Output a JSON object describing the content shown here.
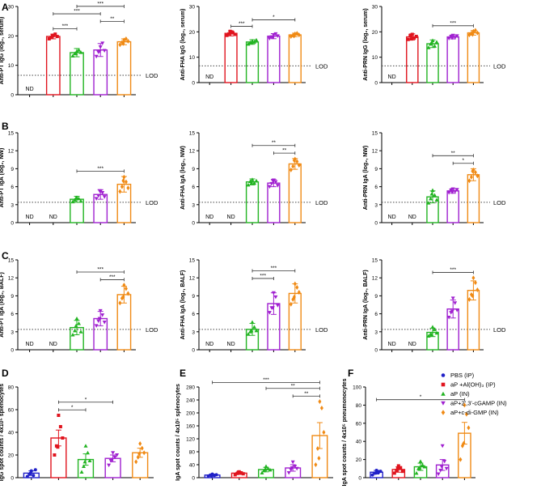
{
  "figure": {
    "panel_letters": [
      "A",
      "B",
      "C",
      "D",
      "E",
      "F"
    ],
    "lod_label": "LOD",
    "nd_label": "ND"
  },
  "legend": {
    "entries": [
      {
        "label": "PBS (IP)",
        "color": "#2020c8",
        "marker": "circle"
      },
      {
        "label": "aP +Al(OH)3 (IP)",
        "color": "#e0141e",
        "marker": "square"
      },
      {
        "label": "aP (IN)",
        "color": "#22b422",
        "marker": "triangle-up"
      },
      {
        "label": "aP+2',3'-cGAMP (IN)",
        "color": "#a020d0",
        "marker": "triangle-down"
      },
      {
        "label": "aP+c-di-GMP (IN)",
        "color": "#f08a14",
        "marker": "diamond"
      }
    ]
  },
  "chart_data": [
    {
      "type": "bar",
      "panel": "A",
      "ylabel": "Anti-PT IgG (log2, serum)",
      "ylim": [
        0,
        30
      ],
      "yticks": [
        0,
        10,
        20,
        30
      ],
      "lod": 6.6,
      "groups": [
        "PBS (IP)",
        "aP +Al(OH)3 (IP)",
        "aP (IN)",
        "aP+2',3'-cGAMP (IN)",
        "aP+c-di-GMP (IN)"
      ],
      "values": [
        null,
        19.8,
        14.3,
        15.2,
        18.0
      ],
      "errors": [
        null,
        0.8,
        1.4,
        2.2,
        1.0
      ],
      "nd": [
        true,
        false,
        false,
        false,
        false
      ],
      "points": [
        [],
        [
          19.0,
          19.5,
          20.2,
          20.6,
          19.8,
          20.0
        ],
        [
          13.2,
          14.0,
          14.8,
          15.2,
          14.4,
          14.0
        ],
        [
          13.0,
          14.5,
          16.2,
          17.5,
          15.0,
          14.8
        ],
        [
          17.0,
          17.8,
          18.6,
          19.0,
          18.2,
          17.4
        ]
      ],
      "brackets": [
        {
          "from": 1,
          "to": 2,
          "label": "***"
        },
        {
          "from": 1,
          "to": 3,
          "label": "***"
        },
        {
          "from": 2,
          "to": 4,
          "label": "***"
        },
        {
          "from": 3,
          "to": 4,
          "label": "**"
        }
      ]
    },
    {
      "type": "bar",
      "panel": "A2",
      "ylabel": "Anti-FHA IgG (log2, serum)",
      "ylim": [
        0,
        30
      ],
      "yticks": [
        0,
        10,
        20,
        30
      ],
      "lod": 6.6,
      "groups": [
        "PBS (IP)",
        "aP +Al(OH)3 (IP)",
        "aP (IN)",
        "aP+2',3'-cGAMP (IN)",
        "aP+c-di-GMP (IN)"
      ],
      "values": [
        null,
        19.4,
        16.0,
        18.3,
        18.8
      ],
      "errors": [
        null,
        1.0,
        0.9,
        1.0,
        0.7
      ],
      "nd": [
        true,
        false,
        false,
        false,
        false
      ],
      "points": [
        [],
        [
          18.6,
          19.2,
          20.0,
          19.6,
          19.0,
          20.2
        ],
        [
          15.2,
          15.8,
          16.4,
          16.0,
          16.8,
          15.6
        ],
        [
          17.4,
          18.0,
          18.8,
          19.2,
          18.4,
          17.8
        ],
        [
          18.2,
          18.6,
          19.2,
          19.4,
          18.8,
          18.4
        ]
      ],
      "brackets": [
        {
          "from": 1,
          "to": 2,
          "label": "***"
        },
        {
          "from": 2,
          "to": 4,
          "label": "*"
        }
      ]
    },
    {
      "type": "bar",
      "panel": "A3",
      "ylabel": "Anti-PRN IgG (log2, serum)",
      "ylim": [
        0,
        30
      ],
      "yticks": [
        0,
        10,
        20,
        30
      ],
      "lod": 6.6,
      "groups": [
        "PBS (IP)",
        "aP +Al(OH)3 (IP)",
        "aP (IN)",
        "aP+2',3'-cGAMP (IN)",
        "aP+c-di-GMP (IN)"
      ],
      "values": [
        null,
        18.0,
        15.3,
        18.0,
        19.6
      ],
      "errors": [
        null,
        1.2,
        1.5,
        0.8,
        0.9
      ],
      "nd": [
        true,
        false,
        false,
        false,
        false
      ],
      "points": [
        [],
        [
          17.0,
          18.6,
          19.0,
          17.6,
          18.2,
          17.2
        ],
        [
          13.8,
          15.2,
          16.6,
          14.4,
          16.0,
          15.8
        ],
        [
          17.4,
          18.2,
          18.6,
          17.8,
          18.4,
          17.6
        ],
        [
          18.8,
          19.4,
          20.2,
          20.6,
          19.6,
          19.0
        ]
      ],
      "brackets": [
        {
          "from": 2,
          "to": 4,
          "label": "***"
        }
      ]
    },
    {
      "type": "bar",
      "panel": "B",
      "ylabel": "Anti-PT IgA (log2, NW)",
      "ylim": [
        0,
        15
      ],
      "yticks": [
        0,
        3,
        6,
        9,
        12,
        15
      ],
      "lod": 3.4,
      "groups": [
        "PBS (IP)",
        "aP +Al(OH)3 (IP)",
        "aP (IN)",
        "aP+2',3'-cGAMP (IN)",
        "aP+c-di-GMP (IN)"
      ],
      "values": [
        null,
        null,
        3.9,
        4.7,
        6.4
      ],
      "errors": [
        null,
        null,
        0.5,
        0.8,
        1.3
      ],
      "nd": [
        true,
        true,
        false,
        false,
        false
      ],
      "points": [
        [],
        [],
        [
          3.5,
          3.8,
          4.2,
          4.0,
          3.6,
          4.1
        ],
        [
          4.0,
          4.5,
          5.2,
          5.0,
          4.3,
          5.3
        ],
        [
          5.2,
          6.0,
          7.6,
          6.8,
          5.8,
          7.0
        ]
      ],
      "brackets": [
        {
          "from": 2,
          "to": 4,
          "label": "***"
        }
      ]
    },
    {
      "type": "bar",
      "panel": "B2",
      "ylabel": "Anti-FHA IgA (log2, NW)",
      "ylim": [
        0,
        15
      ],
      "yticks": [
        0,
        3,
        6,
        9,
        12,
        15
      ],
      "lod": 3.4,
      "groups": [
        "PBS (IP)",
        "aP +Al(OH)3 (IP)",
        "aP (IN)",
        "aP+2',3'-cGAMP (IN)",
        "aP+c-di-GMP (IN)"
      ],
      "values": [
        null,
        null,
        6.8,
        6.6,
        9.8
      ],
      "errors": [
        null,
        null,
        0.5,
        0.6,
        0.9
      ],
      "nd": [
        true,
        true,
        false,
        false,
        false
      ],
      "points": [
        [],
        [],
        [
          6.3,
          6.9,
          7.2,
          6.6,
          7.0,
          6.6
        ],
        [
          6.0,
          6.5,
          7.1,
          6.8,
          6.2,
          7.0
        ],
        [
          8.8,
          9.4,
          10.6,
          10.2,
          9.6,
          10.4
        ]
      ],
      "brackets": [
        {
          "from": 2,
          "to": 4,
          "label": "**"
        },
        {
          "from": 3,
          "to": 4,
          "label": "**"
        }
      ]
    },
    {
      "type": "bar",
      "panel": "B3",
      "ylabel": "Anti-PRN IgA (log2, NW)",
      "ylim": [
        0,
        15
      ],
      "yticks": [
        0,
        3,
        6,
        9,
        12,
        15
      ],
      "lod": 3.4,
      "groups": [
        "PBS (IP)",
        "aP +Al(OH)3 (IP)",
        "aP (IN)",
        "aP+2',3'-cGAMP (IN)",
        "aP+c-di-GMP (IN)"
      ],
      "values": [
        null,
        null,
        4.3,
        5.3,
        8.0
      ],
      "errors": [
        null,
        null,
        1.0,
        0.4,
        1.0
      ],
      "nd": [
        true,
        true,
        false,
        false,
        false
      ],
      "points": [
        [],
        [],
        [
          3.3,
          4.0,
          5.4,
          4.6,
          3.8,
          4.8
        ],
        [
          5.0,
          5.4,
          5.6,
          5.2,
          5.5,
          5.1
        ],
        [
          7.0,
          7.6,
          8.8,
          8.4,
          7.8,
          8.6
        ]
      ],
      "brackets": [
        {
          "from": 2,
          "to": 4,
          "label": "**"
        },
        {
          "from": 3,
          "to": 4,
          "label": "*"
        }
      ]
    },
    {
      "type": "bar",
      "panel": "C",
      "ylabel": "Anti-PT IgA (log2, BALF)",
      "ylim": [
        0,
        15
      ],
      "yticks": [
        0,
        3,
        6,
        9,
        12,
        15
      ],
      "lod": 3.4,
      "groups": [
        "PBS (IP)",
        "aP +Al(OH)3 (IP)",
        "aP (IN)",
        "aP+2',3'-cGAMP (IN)",
        "aP+c-di-GMP (IN)"
      ],
      "values": [
        null,
        null,
        3.7,
        5.2,
        9.2
      ],
      "errors": [
        null,
        null,
        1.2,
        1.2,
        1.4
      ],
      "nd": [
        true,
        true,
        false,
        false,
        false
      ],
      "points": [
        [],
        [],
        [
          2.5,
          3.2,
          5.2,
          4.4,
          3.0,
          4.0
        ],
        [
          4.0,
          4.8,
          6.5,
          5.8,
          4.6,
          5.2
        ],
        [
          7.8,
          8.6,
          10.8,
          10.2,
          9.4,
          8.8
        ]
      ],
      "brackets": [
        {
          "from": 2,
          "to": 4,
          "label": "***"
        },
        {
          "from": 3,
          "to": 4,
          "label": "***"
        }
      ]
    },
    {
      "type": "bar",
      "panel": "C2",
      "ylabel": "Anti-FHA IgA (log2, BALF)",
      "ylim": [
        0,
        15
      ],
      "yticks": [
        0,
        3,
        6,
        9,
        12,
        15
      ],
      "lod": 3.4,
      "groups": [
        "PBS (IP)",
        "aP +Al(OH)3 (IP)",
        "aP (IN)",
        "aP+2',3'-cGAMP (IN)",
        "aP+c-di-GMP (IN)"
      ],
      "values": [
        null,
        null,
        3.4,
        7.7,
        9.4
      ],
      "errors": [
        null,
        null,
        1.0,
        1.8,
        1.6
      ],
      "nd": [
        true,
        true,
        false,
        false,
        false
      ],
      "points": [
        [],
        [],
        [
          2.6,
          3.0,
          4.6,
          3.8,
          3.2,
          3.2
        ],
        [
          6.2,
          7.0,
          9.5,
          8.8,
          7.4,
          7.0
        ],
        [
          7.6,
          8.4,
          11.0,
          10.4,
          9.6,
          8.8
        ]
      ],
      "brackets": [
        {
          "from": 2,
          "to": 3,
          "label": "***"
        },
        {
          "from": 2,
          "to": 4,
          "label": "***"
        }
      ]
    },
    {
      "type": "bar",
      "panel": "C3",
      "ylabel": "Anti-PRN IgA (log2, BALF)",
      "ylim": [
        0,
        15
      ],
      "yticks": [
        0,
        3,
        6,
        9,
        12,
        15
      ],
      "lod": 3.4,
      "groups": [
        "PBS (IP)",
        "aP +Al(OH)3 (IP)",
        "aP (IN)",
        "aP+2',3'-cGAMP (IN)",
        "aP+c-di-GMP (IN)"
      ],
      "values": [
        null,
        null,
        2.9,
        6.8,
        9.9
      ],
      "errors": [
        null,
        null,
        0.7,
        1.5,
        1.6
      ],
      "nd": [
        true,
        true,
        false,
        false,
        false
      ],
      "points": [
        [],
        [],
        [
          2.3,
          2.6,
          3.8,
          3.4,
          2.8,
          2.5
        ],
        [
          5.4,
          6.2,
          8.6,
          7.8,
          6.6,
          6.4
        ],
        [
          8.4,
          9.2,
          12.0,
          11.2,
          10.0,
          9.0
        ]
      ],
      "brackets": [
        {
          "from": 2,
          "to": 4,
          "label": "***"
        }
      ]
    },
    {
      "type": "bar",
      "panel": "D",
      "ylabel": "IgG spot counts / 4x10^5 splenocytes",
      "ylim": [
        0,
        80
      ],
      "yticks": [
        0,
        20,
        40,
        60,
        80
      ],
      "lod": null,
      "groups": [
        "PBS (IP)",
        "aP +Al(OH)3 (IP)",
        "aP (IN)",
        "aP+2',3'-cGAMP (IN)",
        "aP+c-di-GMP (IN)"
      ],
      "values": [
        4.0,
        35.0,
        16.0,
        17.0,
        22.0
      ],
      "errors": [
        2.0,
        7.0,
        5.0,
        3.0,
        4.0
      ],
      "nd": [
        false,
        false,
        false,
        false,
        false
      ],
      "points": [
        [
          1.0,
          3.0,
          6.0,
          2.0,
          7.0,
          4.0
        ],
        [
          20.0,
          28.0,
          55.0,
          45.0,
          35.0,
          27.0
        ],
        [
          5.0,
          10.0,
          28.0,
          22.0,
          15.0,
          14.0
        ],
        [
          11.0,
          15.0,
          22.0,
          18.0,
          20.0,
          16.0
        ],
        [
          14.0,
          18.0,
          30.0,
          26.0,
          22.0,
          21.0
        ]
      ],
      "brackets": [
        {
          "from": 1,
          "to": 2,
          "label": "*"
        },
        {
          "from": 1,
          "to": 3,
          "label": "*"
        }
      ]
    },
    {
      "type": "bar",
      "panel": "E",
      "ylabel": "IgA spot counts / 4x10^5 splenocytes",
      "ylim": [
        0,
        280
      ],
      "yticks": [
        0,
        40,
        80,
        120,
        160,
        200,
        240,
        280
      ],
      "lod": null,
      "groups": [
        "PBS (IP)",
        "aP +Al(OH)3 (IP)",
        "aP (IN)",
        "aP+2',3'-cGAMP (IN)",
        "aP+c-di-GMP (IN)"
      ],
      "values": [
        8.0,
        14.0,
        25.0,
        30.0,
        130.0
      ],
      "errors": [
        3.0,
        4.0,
        7.0,
        10.0,
        40.0
      ],
      "nd": [
        false,
        false,
        false,
        false,
        false
      ],
      "points": [
        [
          5.0,
          8.0,
          11.0,
          7.0,
          9.0,
          6.0
        ],
        [
          9.0,
          13.0,
          18.0,
          15.0,
          12.0,
          17.0
        ],
        [
          15.0,
          22.0,
          35.0,
          28.0,
          24.0,
          26.0
        ],
        [
          15.0,
          25.0,
          48.0,
          35.0,
          28.0,
          30.0
        ],
        [
          40.0,
          90.0,
          235.0,
          215.0,
          140.0,
          60.0
        ]
      ],
      "brackets": [
        {
          "from": 0,
          "to": 4,
          "label": "***"
        },
        {
          "from": 2,
          "to": 4,
          "label": "**"
        },
        {
          "from": 3,
          "to": 4,
          "label": "**"
        }
      ]
    },
    {
      "type": "bar",
      "panel": "F",
      "ylabel": "IgA spot counts / 4x10^5 pneumonocytes",
      "ylim": [
        0,
        100
      ],
      "yticks": [
        0,
        20,
        40,
        60,
        80,
        100
      ],
      "lod": null,
      "groups": [
        "PBS (IP)",
        "aP +Al(OH)3 (IP)",
        "aP (IN)",
        "aP+2',3'-cGAMP (IN)",
        "aP+c-di-GMP (IN)"
      ],
      "values": [
        6.0,
        9.0,
        12.0,
        14.0,
        49.0
      ],
      "errors": [
        2.0,
        3.0,
        4.0,
        6.0,
        12.0
      ],
      "nd": [
        false,
        false,
        false,
        false,
        false
      ],
      "points": [
        [
          3.0,
          5.0,
          8.0,
          6.0,
          7.0,
          5.0
        ],
        [
          5.0,
          8.0,
          13.0,
          11.0,
          7.0,
          10.0
        ],
        [
          5.0,
          10.0,
          18.0,
          14.0,
          12.0,
          11.0
        ],
        [
          4.0,
          8.0,
          35.0,
          18.0,
          10.0,
          12.0
        ],
        [
          20.0,
          35.0,
          80.0,
          70.0,
          55.0,
          38.0
        ]
      ],
      "brackets": [
        {
          "from": 0,
          "to": 4,
          "label": "*"
        }
      ]
    }
  ]
}
